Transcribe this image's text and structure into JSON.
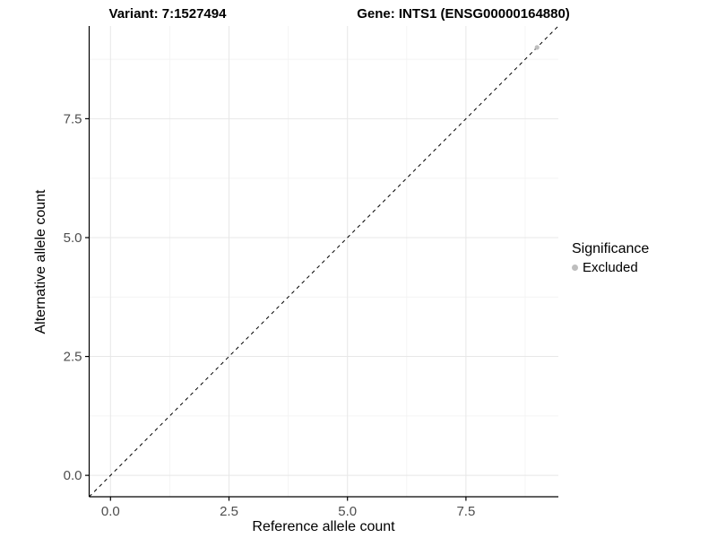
{
  "titles": {
    "variant": "Variant: 7:1527494",
    "gene": "Gene: INTS1 (ENSG00000164880)"
  },
  "chart_data": {
    "type": "scatter",
    "xlabel": "Reference allele count",
    "ylabel": "Alternative allele count",
    "xlim": [
      -0.45,
      9.45
    ],
    "ylim": [
      -0.45,
      9.45
    ],
    "x_ticks": [
      0.0,
      2.5,
      5.0,
      7.5
    ],
    "y_ticks": [
      0.0,
      2.5,
      5.0,
      7.5
    ],
    "x_tick_labels": [
      "0.0",
      "2.5",
      "5.0",
      "7.5"
    ],
    "y_tick_labels": [
      "0.0",
      "2.5",
      "5.0",
      "7.5"
    ],
    "minor_ticks": [
      1.25,
      3.75,
      6.25,
      8.75
    ],
    "grid": true,
    "reference_line": {
      "kind": "abline",
      "slope": 1,
      "intercept": 0,
      "style": "dashed",
      "color": "#000000"
    },
    "series": [
      {
        "name": "Excluded",
        "color": "#bebebe",
        "points": [
          {
            "x": 9,
            "y": 9
          }
        ]
      }
    ],
    "legend": {
      "title": "Significance",
      "position": "right",
      "items": [
        {
          "label": "Excluded",
          "color": "#bebebe"
        }
      ]
    },
    "colors": {
      "grid_major": "#e7e7e7",
      "grid_minor": "#f4f4f4",
      "axis_line": "#000000",
      "tick_mark": "#000000",
      "tick_label": "#4d4d4d"
    }
  }
}
